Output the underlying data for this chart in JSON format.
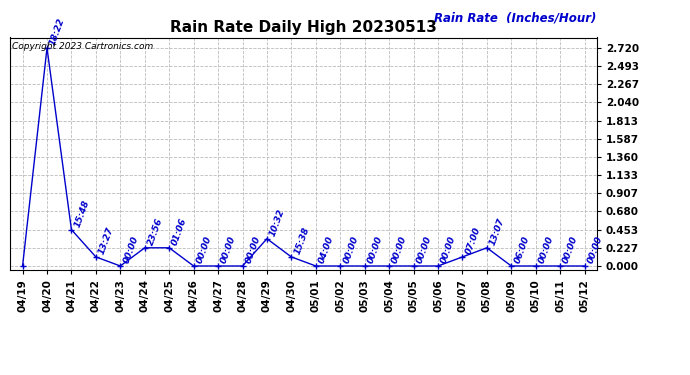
{
  "title": "Rain Rate Daily High 20230513",
  "ylabel": "Rain Rate  (Inches/Hour)",
  "copyright": "Copyright 2023 Cartronics.com",
  "line_color": "#0000cc",
  "background_color": "#ffffff",
  "grid_color": "#bbbbbb",
  "yticks": [
    0.0,
    0.227,
    0.453,
    0.68,
    0.907,
    1.133,
    1.36,
    1.587,
    1.813,
    2.04,
    2.267,
    2.493,
    2.72
  ],
  "ylim": [
    -0.05,
    2.85
  ],
  "x_labels": [
    "04/19",
    "04/20",
    "04/21",
    "04/22",
    "04/23",
    "04/24",
    "04/25",
    "04/26",
    "04/27",
    "04/28",
    "04/29",
    "04/30",
    "05/01",
    "05/02",
    "05/03",
    "05/04",
    "05/05",
    "05/06",
    "05/07",
    "05/08",
    "05/09",
    "05/10",
    "05/11",
    "05/12"
  ],
  "values": [
    0.0,
    2.72,
    0.453,
    0.113,
    0.0,
    0.227,
    0.227,
    0.0,
    0.0,
    0.0,
    0.34,
    0.113,
    0.0,
    0.0,
    0.0,
    0.0,
    0.0,
    0.0,
    0.113,
    0.227,
    0.0,
    0.0,
    0.0,
    0.0
  ],
  "point_labels": [
    "",
    "18:22",
    "15:48",
    "13:27",
    "00:00",
    "23:56",
    "01:06",
    "00:00",
    "00:00",
    "00:00",
    "10:32",
    "15:38",
    "04:00",
    "00:00",
    "00:00",
    "00:00",
    "00:00",
    "00:00",
    "07:00",
    "13:07",
    "06:00",
    "00:00",
    "00:00",
    "00:00"
  ],
  "label_color": "#0000cc",
  "title_fontsize": 11,
  "axis_label_fontsize": 8.5,
  "tick_fontsize": 7.5,
  "point_label_fontsize": 6.5
}
